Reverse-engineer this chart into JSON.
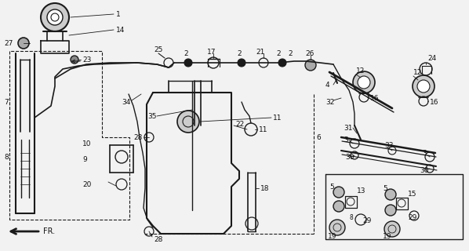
{
  "bg_color": "#f2f2f2",
  "line_color": "#1a1a1a",
  "text_color": "#111111",
  "figsize": [
    5.98,
    3.2
  ],
  "dpi": 100
}
